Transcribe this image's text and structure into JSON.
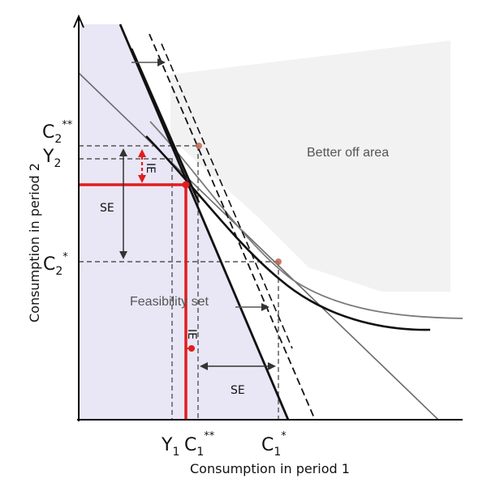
{
  "axes": {
    "x_label": "Consumption in period 1",
    "y_label": "Consumption in period 2"
  },
  "x_ticks": {
    "y1": {
      "main": "Y",
      "sub": "1"
    },
    "c1_double": {
      "main": "C",
      "sub": "1",
      "sup": "**"
    },
    "c1_star": {
      "main": "C",
      "sub": "1",
      "sup": "*"
    }
  },
  "y_ticks": {
    "c2_double": {
      "main": "C",
      "sub": "2",
      "sup": "**"
    },
    "y2": {
      "main": "Y",
      "sub": "2"
    },
    "c2_star": {
      "main": "C",
      "sub": "2",
      "sup": "*"
    }
  },
  "regions": {
    "better_off": "Better off area",
    "feasibility": "Feasibility set"
  },
  "effects": {
    "se_vertical": "SE",
    "ie_vertical": "IE",
    "ie_horizontal": "IE",
    "se_horizontal": "SE"
  },
  "colors": {
    "feasibility_fill": "#e9e6f5",
    "better_off_fill": "#f2f2f2",
    "endowment_red": "#e11d1d",
    "budget_black": "#111111",
    "dashed_guides": "#555555",
    "tangency_points": "#c06a50"
  }
}
